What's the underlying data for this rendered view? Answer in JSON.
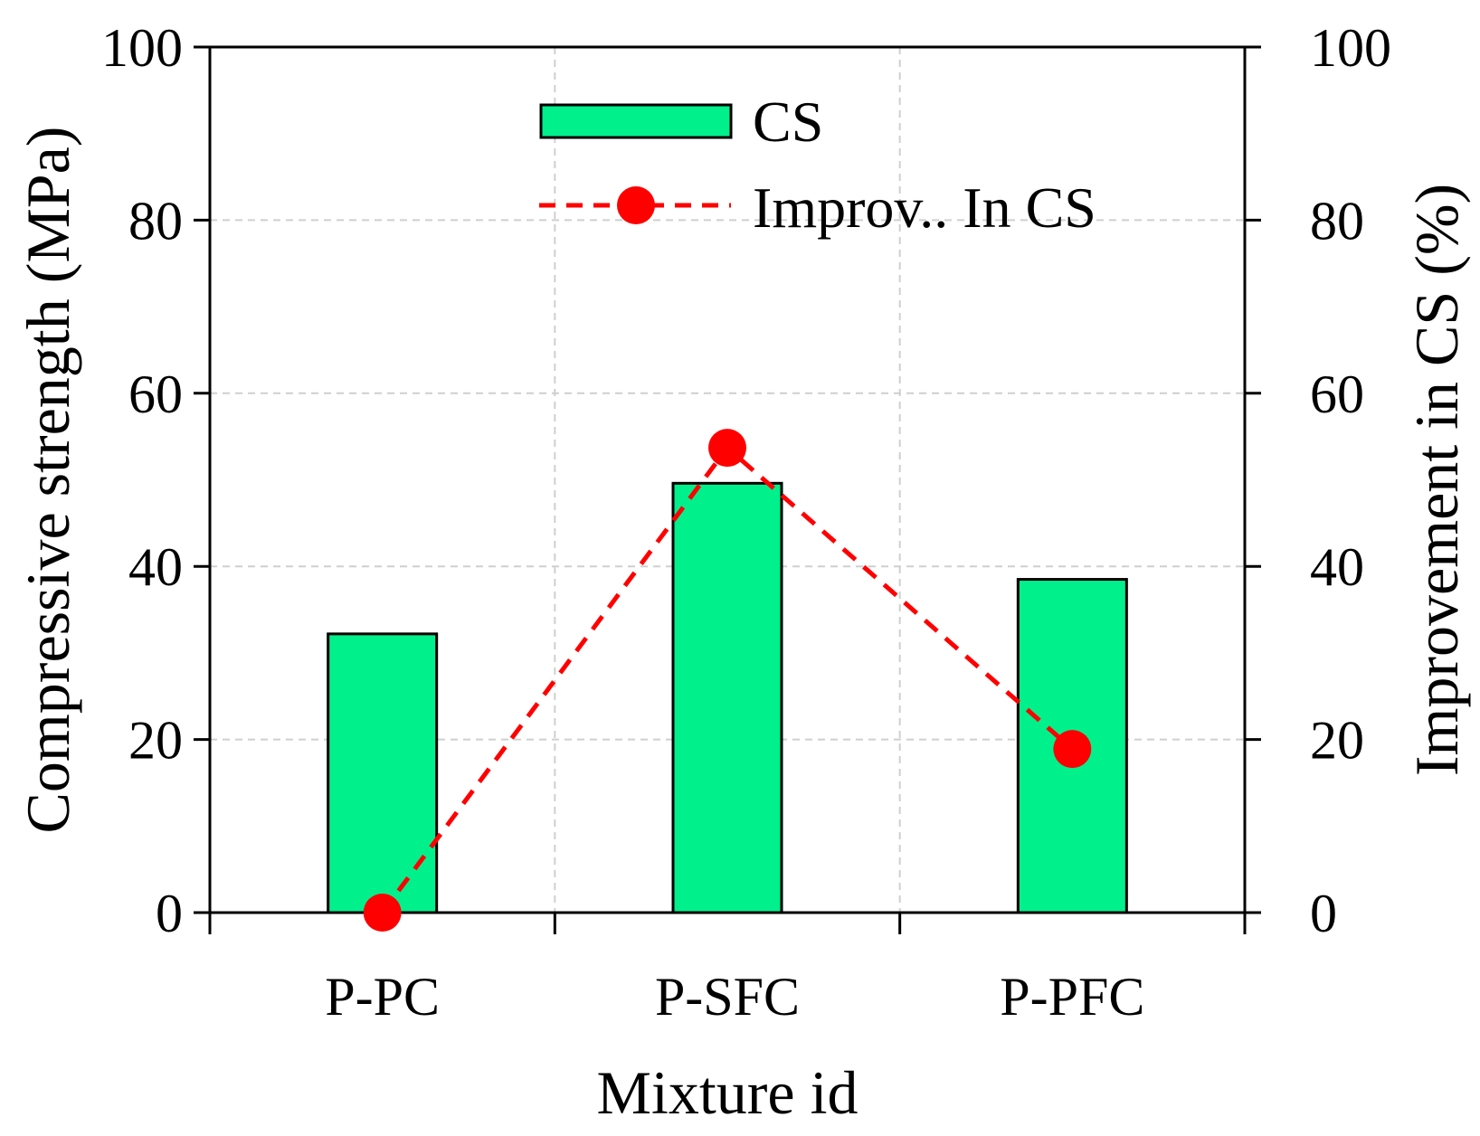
{
  "chart_data": {
    "type": "bar",
    "title": "",
    "xlabel": "Mixture id",
    "ylabel": "Compressive strength (MPa)",
    "y2label": "Improvement in CS (%)",
    "categories": [
      "P-PC",
      "P-SFC",
      "P-PFC"
    ],
    "ylim": [
      0,
      100
    ],
    "y2lim": [
      0,
      100
    ],
    "yticks": [
      0,
      20,
      40,
      60,
      80,
      100
    ],
    "y2ticks": [
      0,
      20,
      40,
      60,
      80,
      100
    ],
    "grid": true,
    "legend_position": "top-center",
    "series": [
      {
        "name": "CS",
        "type": "bar",
        "axis": "left",
        "values": [
          32.2,
          49.6,
          38.5
        ],
        "color": "#00f08c"
      },
      {
        "name": "Improv.. In CS",
        "type": "line",
        "axis": "right",
        "style": "dashed",
        "marker": "circle",
        "values": [
          0,
          53.7,
          18.9
        ],
        "color": "#ff0000"
      }
    ]
  }
}
